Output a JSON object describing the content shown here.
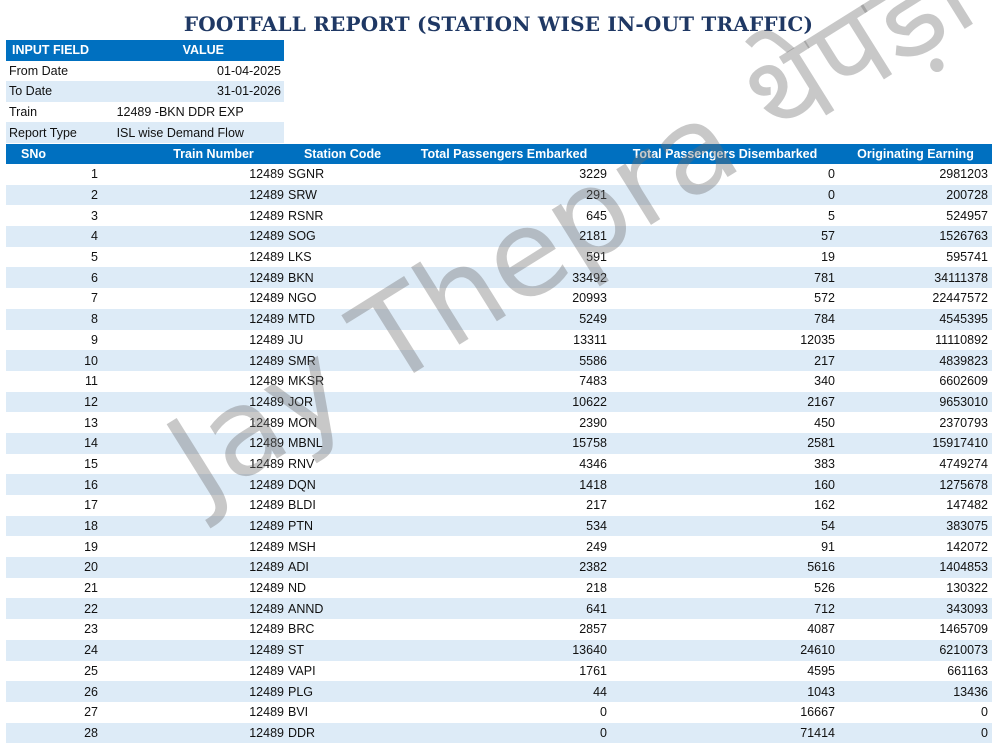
{
  "title": "FOOTFALL REPORT (STATION WISE IN-OUT TRAFFIC)",
  "inputs": {
    "header": {
      "field": "INPUT FIELD",
      "value": "VALUE"
    },
    "from_date": {
      "label": "From Date",
      "value": "01-04-2025"
    },
    "to_date": {
      "label": "To Date",
      "value": "31-01-2026"
    },
    "train": {
      "label": "Train",
      "value": "12489 -BKN DDR EXP"
    },
    "report_type": {
      "label": "Report Type",
      "value": "ISL wise Demand Flow"
    }
  },
  "table": {
    "headers": [
      "SNo",
      "Train Number",
      "Station Code",
      "Total Passengers Embarked",
      "Total Passengers Disembarked",
      "Originating Earning"
    ],
    "rows": [
      [
        "1",
        "12489",
        "SGNR",
        "3229",
        "0",
        "2981203"
      ],
      [
        "2",
        "12489",
        "SRW",
        "291",
        "0",
        "200728"
      ],
      [
        "3",
        "12489",
        "RSNR",
        "645",
        "5",
        "524957"
      ],
      [
        "4",
        "12489",
        "SOG",
        "2181",
        "57",
        "1526763"
      ],
      [
        "5",
        "12489",
        "LKS",
        "591",
        "19",
        "595741"
      ],
      [
        "6",
        "12489",
        "BKN",
        "33492",
        "781",
        "34111378"
      ],
      [
        "7",
        "12489",
        "NGO",
        "20993",
        "572",
        "22447572"
      ],
      [
        "8",
        "12489",
        "MTD",
        "5249",
        "784",
        "4545395"
      ],
      [
        "9",
        "12489",
        "JU",
        "13311",
        "12035",
        "11110892"
      ],
      [
        "10",
        "12489",
        "SMR",
        "5586",
        "217",
        "4839823"
      ],
      [
        "11",
        "12489",
        "MKSR",
        "7483",
        "340",
        "6602609"
      ],
      [
        "12",
        "12489",
        "JOR",
        "10622",
        "2167",
        "9653010"
      ],
      [
        "13",
        "12489",
        "MON",
        "2390",
        "450",
        "2370793"
      ],
      [
        "14",
        "12489",
        "MBNL",
        "15758",
        "2581",
        "15917410"
      ],
      [
        "15",
        "12489",
        "RNV",
        "4346",
        "383",
        "4749274"
      ],
      [
        "16",
        "12489",
        "DQN",
        "1418",
        "160",
        "1275678"
      ],
      [
        "17",
        "12489",
        "BLDI",
        "217",
        "162",
        "147482"
      ],
      [
        "18",
        "12489",
        "PTN",
        "534",
        "54",
        "383075"
      ],
      [
        "19",
        "12489",
        "MSH",
        "249",
        "91",
        "142072"
      ],
      [
        "20",
        "12489",
        "ADI",
        "2382",
        "5616",
        "1404853"
      ],
      [
        "21",
        "12489",
        "ND",
        "218",
        "526",
        "130322"
      ],
      [
        "22",
        "12489",
        "ANND",
        "641",
        "712",
        "343093"
      ],
      [
        "23",
        "12489",
        "BRC",
        "2857",
        "4087",
        "1465709"
      ],
      [
        "24",
        "12489",
        "ST",
        "13640",
        "24610",
        "6210073"
      ],
      [
        "25",
        "12489",
        "VAPI",
        "1761",
        "4595",
        "661163"
      ],
      [
        "26",
        "12489",
        "PLG",
        "44",
        "1043",
        "13436"
      ],
      [
        "27",
        "12489",
        "BVI",
        "0",
        "16667",
        "0"
      ],
      [
        "28",
        "12489",
        "DDR",
        "0",
        "71414",
        "0"
      ]
    ]
  },
  "watermark": "Jay Thepra थेपड़ा",
  "colors": {
    "header_bg": "#0070c0",
    "alt_row": "#ddebf7",
    "title": "#1f3864"
  }
}
